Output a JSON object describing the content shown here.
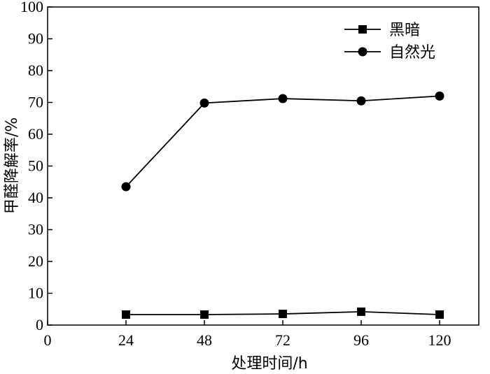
{
  "chart_data": {
    "type": "line",
    "xlabel": "处理时间/h",
    "ylabel": "甲醛降解率/%",
    "xlim": [
      0,
      132
    ],
    "ylim": [
      0,
      100
    ],
    "x_ticks": [
      0,
      24,
      48,
      72,
      96,
      120
    ],
    "y_ticks": [
      0,
      10,
      20,
      30,
      40,
      50,
      60,
      70,
      80,
      90,
      100
    ],
    "grid": false,
    "legend_position": "top-right",
    "x": [
      24,
      48,
      72,
      96,
      120
    ],
    "series": [
      {
        "name": "黑暗",
        "marker": "square",
        "color": "#000000",
        "values": [
          3.3,
          3.3,
          3.5,
          4.2,
          3.3
        ]
      },
      {
        "name": "自然光",
        "marker": "circle",
        "color": "#000000",
        "values": [
          43.5,
          69.8,
          71.2,
          70.5,
          72.0
        ]
      }
    ]
  }
}
